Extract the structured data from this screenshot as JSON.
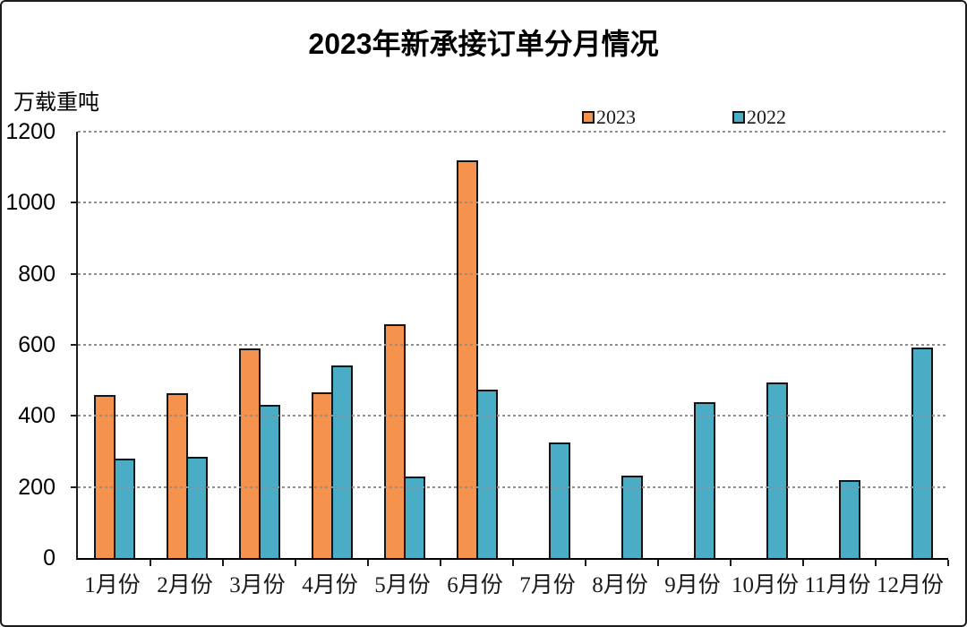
{
  "page": {
    "background": "#ffffff",
    "border_color": "#1c1c1c"
  },
  "chart_data": {
    "type": "bar",
    "title": "2023年新承接订单分月情况",
    "unit_label": "万载重吨",
    "categories": [
      "1月份",
      "2月份",
      "3月份",
      "4月份",
      "5月份",
      "6月份",
      "7月份",
      "8月份",
      "9月份",
      "10月份",
      "11月份",
      "12月份"
    ],
    "series": [
      {
        "name": "2023",
        "color": "#F5924D",
        "values": [
          459,
          464,
          591,
          467,
          658,
          1120,
          null,
          null,
          null,
          null,
          null,
          null
        ]
      },
      {
        "name": "2022",
        "color": "#4AACC5",
        "values": [
          280,
          284,
          430,
          543,
          229,
          475,
          326,
          233,
          438,
          494,
          219,
          592
        ]
      }
    ],
    "ylim": [
      0,
      1200
    ],
    "ytick_interval": 200,
    "yticks": [
      0,
      200,
      400,
      600,
      800,
      1000,
      1200
    ],
    "grid": "horizontal-dotted",
    "gridline_color": "#8f8f8f",
    "axis_color": "#000000",
    "bar_outline_color": "#141414",
    "legend_position": "top-inside"
  }
}
